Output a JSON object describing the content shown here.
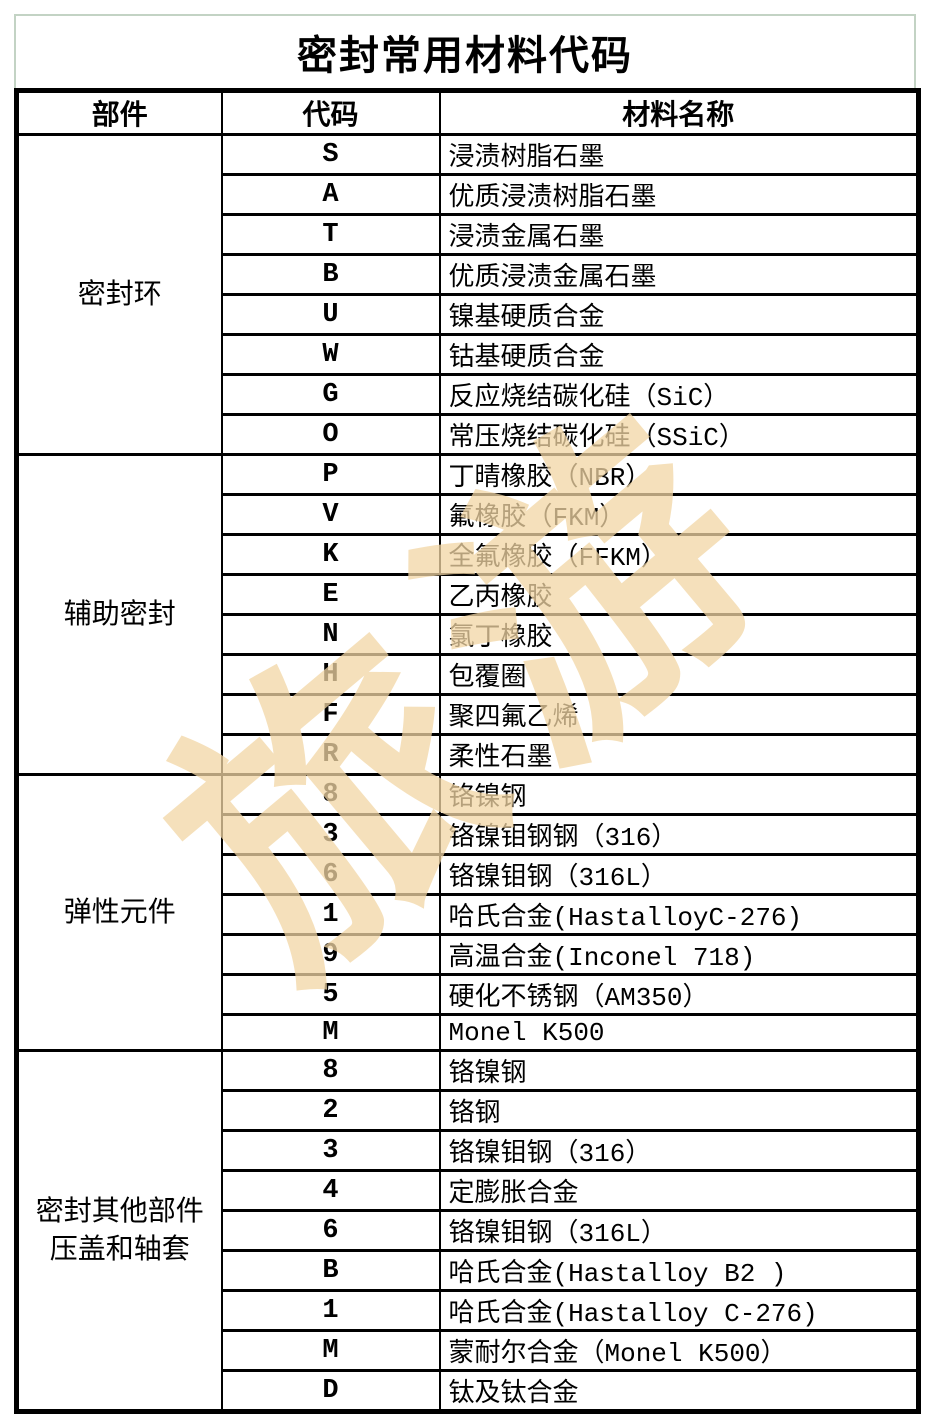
{
  "page": {
    "title": "密封常用材料代码"
  },
  "table": {
    "headers": [
      "部件",
      "代码",
      "材料名称"
    ],
    "groups": [
      {
        "component": "密封环",
        "rows": [
          {
            "code": "S",
            "material": "浸渍树脂石墨"
          },
          {
            "code": "A",
            "material": "优质浸渍树脂石墨"
          },
          {
            "code": "T",
            "material": "浸渍金属石墨"
          },
          {
            "code": "B",
            "material": "优质浸渍金属石墨"
          },
          {
            "code": "U",
            "material": "镍基硬质合金"
          },
          {
            "code": "W",
            "material": "钴基硬质合金"
          },
          {
            "code": "G",
            "material": "反应烧结碳化硅（SiC）"
          },
          {
            "code": "O",
            "material": "常压烧结碳化硅（SSiC）"
          }
        ]
      },
      {
        "component": "辅助密封",
        "rows": [
          {
            "code": "P",
            "material": "丁晴橡胶（NBR）"
          },
          {
            "code": "V",
            "material": "氟橡胶（FKM）"
          },
          {
            "code": "K",
            "material": "全氟橡胶（FFKM）"
          },
          {
            "code": "E",
            "material": "乙丙橡胶"
          },
          {
            "code": "N",
            "material": "氯丁橡胶"
          },
          {
            "code": "H",
            "material": "包覆圈"
          },
          {
            "code": "F",
            "material": "聚四氟乙烯"
          },
          {
            "code": "R",
            "material": "柔性石墨"
          }
        ]
      },
      {
        "component": "弹性元件",
        "rows": [
          {
            "code": "8",
            "material": "铬镍钢"
          },
          {
            "code": "3",
            "material": "铬镍钼钢钢（316）"
          },
          {
            "code": "6",
            "material": "铬镍钼钢（316L）"
          },
          {
            "code": "1",
            "material": "哈氏合金(HastalloyC-276)"
          },
          {
            "code": "9",
            "material": "高温合金(Inconel 718)"
          },
          {
            "code": "5",
            "material": "硬化不锈钢（AM350）"
          },
          {
            "code": "M",
            "material": "Monel K500"
          }
        ]
      },
      {
        "component": "密封其他部件\n压盖和轴套",
        "rows": [
          {
            "code": "8",
            "material": "铬镍钢"
          },
          {
            "code": "2",
            "material": "铬钢"
          },
          {
            "code": "3",
            "material": "铬镍钼钢（316）"
          },
          {
            "code": "4",
            "material": "定膨胀合金"
          },
          {
            "code": "6",
            "material": "铬镍钼钢（316L）"
          },
          {
            "code": "B",
            "material": "哈氏合金(Hastalloy B2 )"
          },
          {
            "code": "1",
            "material": "哈氏合金(Hastalloy C-276)"
          },
          {
            "code": "M",
            "material": "蒙耐尔合金（Monel K500）"
          },
          {
            "code": "D",
            "material": "钛及钛合金"
          }
        ]
      }
    ]
  },
  "watermark": {
    "text": "旅游",
    "color_rgba": "rgba(241,213,164,0.75)"
  },
  "colors": {
    "title_border": "#c3d3c4",
    "table_border": "#000000"
  }
}
